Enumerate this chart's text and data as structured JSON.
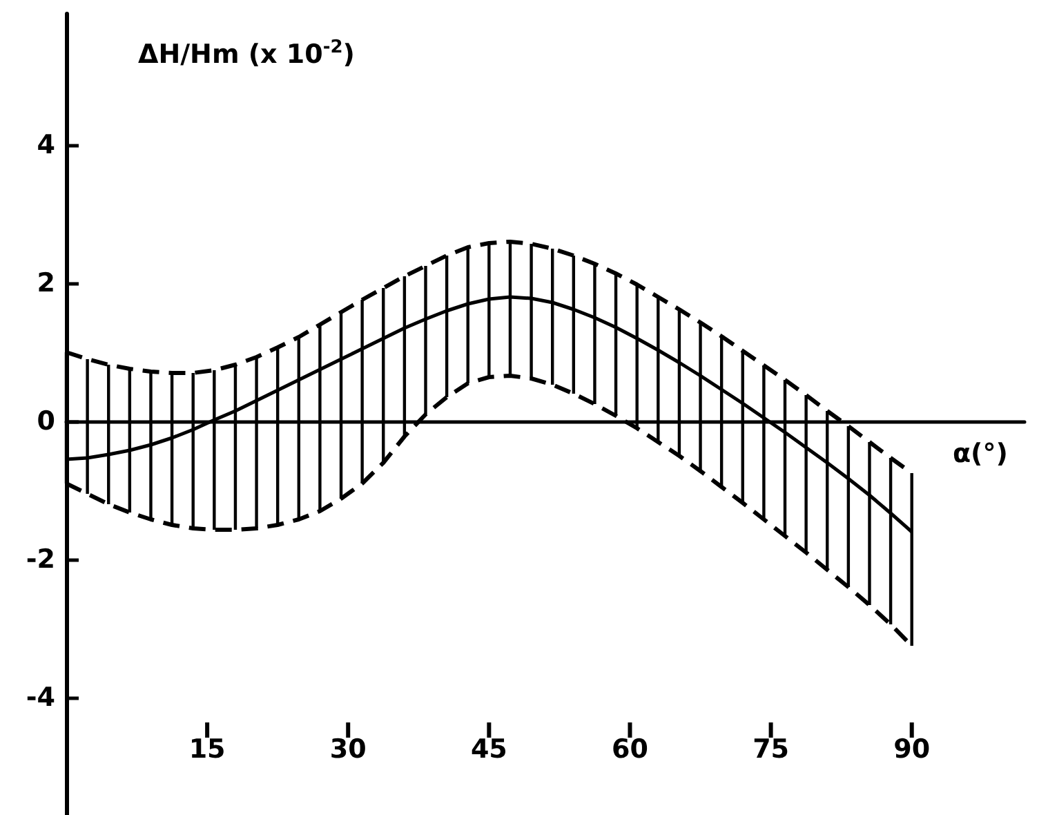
{
  "chart_data": {
    "type": "line",
    "xlabel": "α(°)",
    "ylabel": "ΔH/Hm (x 10$^{-2}$)",
    "x": [
      0,
      2.25,
      4.5,
      6.75,
      9,
      11.25,
      13.5,
      15.75,
      18,
      20.25,
      22.5,
      24.75,
      27,
      29.25,
      31.5,
      33.75,
      36,
      38.25,
      40.5,
      42.75,
      45,
      47.25,
      49.5,
      51.75,
      54,
      56.25,
      58.5,
      60.75,
      63,
      65.25,
      67.5,
      69.75,
      72,
      74.25,
      76.5,
      78.75,
      81,
      83.25,
      85.5,
      87.75,
      90
    ],
    "series": [
      {
        "color": "#000000",
        "line_style": "solid",
        "values": [
          -0.55,
          -0.53,
          -0.48,
          -0.42,
          -0.34,
          -0.24,
          -0.12,
          0.02,
          0.15,
          0.3,
          0.45,
          0.6,
          0.75,
          0.9,
          1.05,
          1.2,
          1.35,
          1.48,
          1.6,
          1.7,
          1.77,
          1.8,
          1.78,
          1.72,
          1.62,
          1.5,
          1.36,
          1.2,
          1.03,
          0.85,
          0.66,
          0.46,
          0.26,
          0.05,
          -0.16,
          -0.38,
          -0.6,
          -0.83,
          -1.07,
          -1.33,
          -1.6
        ],
        "errors": [
          [
            -0.9,
            1.0
          ],
          [
            -1.05,
            0.9
          ],
          [
            -1.2,
            0.82
          ],
          [
            -1.32,
            0.76
          ],
          [
            -1.42,
            0.72
          ],
          [
            -1.5,
            0.7
          ],
          [
            -1.55,
            0.7
          ],
          [
            -1.57,
            0.74
          ],
          [
            -1.57,
            0.82
          ],
          [
            -1.55,
            0.93
          ],
          [
            -1.5,
            1.07
          ],
          [
            -1.42,
            1.22
          ],
          [
            -1.3,
            1.4
          ],
          [
            -1.12,
            1.58
          ],
          [
            -0.9,
            1.76
          ],
          [
            -0.6,
            1.93
          ],
          [
            -0.22,
            2.1
          ],
          [
            0.1,
            2.25
          ],
          [
            0.35,
            2.4
          ],
          [
            0.55,
            2.52
          ],
          [
            0.64,
            2.58
          ],
          [
            0.66,
            2.6
          ],
          [
            0.62,
            2.57
          ],
          [
            0.53,
            2.5
          ],
          [
            0.4,
            2.4
          ],
          [
            0.25,
            2.28
          ],
          [
            0.08,
            2.14
          ],
          [
            -0.1,
            1.98
          ],
          [
            -0.3,
            1.8
          ],
          [
            -0.5,
            1.62
          ],
          [
            -0.72,
            1.43
          ],
          [
            -0.95,
            1.23
          ],
          [
            -1.18,
            1.02
          ],
          [
            -1.42,
            0.81
          ],
          [
            -1.66,
            0.6
          ],
          [
            -1.9,
            0.38
          ],
          [
            -2.15,
            0.15
          ],
          [
            -2.4,
            -0.07
          ],
          [
            -2.66,
            -0.3
          ],
          [
            -2.94,
            -0.53
          ],
          [
            -3.25,
            -0.75
          ]
        ]
      },
      {
        "color": "#000000",
        "line_style": "dashed",
        "values": [
          1.0,
          0.9,
          0.82,
          0.76,
          0.72,
          0.7,
          0.7,
          0.74,
          0.82,
          0.93,
          1.07,
          1.22,
          1.4,
          1.58,
          1.76,
          1.93,
          2.1,
          2.25,
          2.4,
          2.52,
          2.58,
          2.6,
          2.57,
          2.5,
          2.4,
          2.28,
          2.14,
          1.98,
          1.8,
          1.62,
          1.43,
          1.23,
          1.02,
          0.81,
          0.6,
          0.38,
          0.15,
          -0.07,
          -0.3,
          -0.53,
          -0.75
        ]
      },
      {
        "color": "#000000",
        "line_style": "dashed",
        "values": [
          -0.9,
          -1.05,
          -1.2,
          -1.32,
          -1.42,
          -1.5,
          -1.55,
          -1.57,
          -1.57,
          -1.55,
          -1.5,
          -1.42,
          -1.3,
          -1.12,
          -0.9,
          -0.6,
          -0.22,
          0.1,
          0.35,
          0.55,
          0.64,
          0.66,
          0.62,
          0.53,
          0.4,
          0.25,
          0.08,
          -0.1,
          -0.3,
          -0.5,
          -0.72,
          -0.95,
          -1.18,
          -1.42,
          -1.66,
          -1.9,
          -2.15,
          -2.4,
          -2.66,
          -2.94,
          -3.25
        ]
      }
    ],
    "xlim": [
      0,
      102
    ],
    "xticks": [
      15,
      30,
      45,
      60,
      75,
      90
    ],
    "ylim": [
      -5.7,
      5.9
    ],
    "yticks": [
      -4,
      -2,
      0,
      2,
      4
    ],
    "marker": "none"
  }
}
